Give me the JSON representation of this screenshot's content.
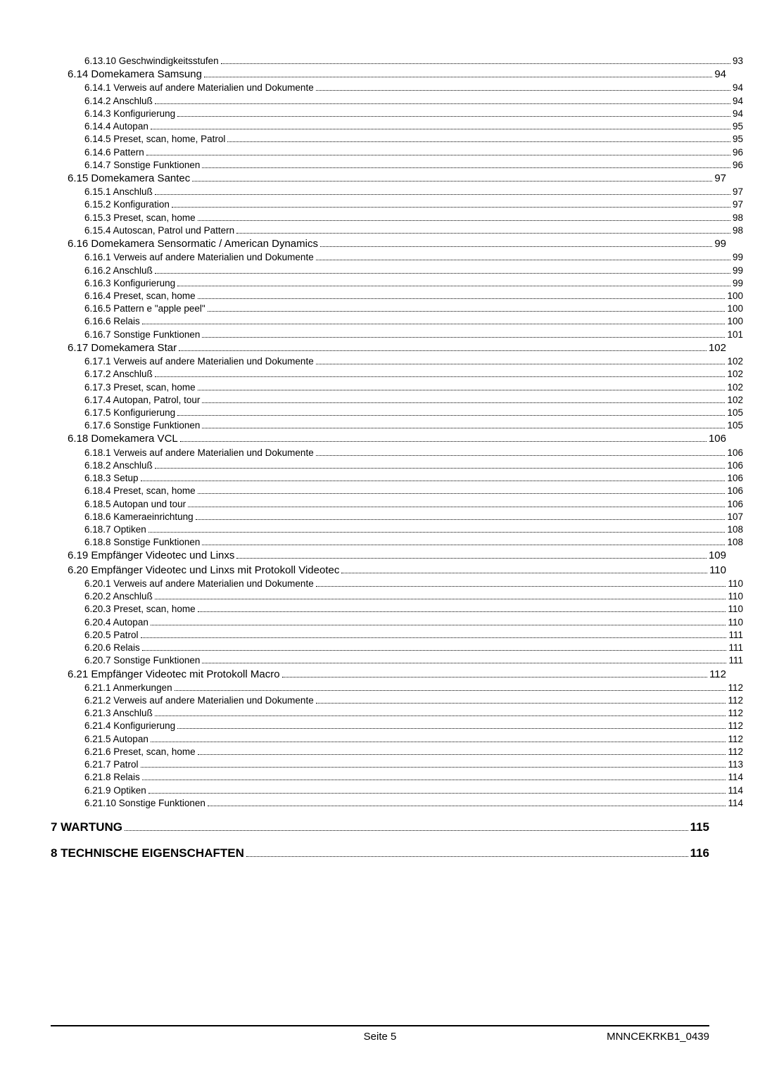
{
  "toc": [
    {
      "level": 3,
      "label": "6.13.10 Geschwindigkeitsstufen",
      "page": "93"
    },
    {
      "level": 2,
      "label": "6.14 Domekamera Samsung",
      "page": "94"
    },
    {
      "level": 3,
      "label": "6.14.1 Verweis auf andere Materialien und Dokumente",
      "page": "94"
    },
    {
      "level": 3,
      "label": "6.14.2 Anschluß",
      "page": "94"
    },
    {
      "level": 3,
      "label": "6.14.3 Konfigurierung",
      "page": "94"
    },
    {
      "level": 3,
      "label": "6.14.4 Autopan",
      "page": "95"
    },
    {
      "level": 3,
      "label": "6.14.5 Preset, scan, home, Patrol",
      "page": "95"
    },
    {
      "level": 3,
      "label": "6.14.6 Pattern",
      "page": "96"
    },
    {
      "level": 3,
      "label": "6.14.7 Sonstige Funktionen",
      "page": "96"
    },
    {
      "level": 2,
      "label": "6.15 Domekamera Santec",
      "page": "97"
    },
    {
      "level": 3,
      "label": "6.15.1 Anschluß",
      "page": "97"
    },
    {
      "level": 3,
      "label": "6.15.2 Konfiguration",
      "page": "97"
    },
    {
      "level": 3,
      "label": "6.15.3 Preset, scan, home",
      "page": "98"
    },
    {
      "level": 3,
      "label": "6.15.4 Autoscan, Patrol und Pattern",
      "page": "98"
    },
    {
      "level": 2,
      "label": "6.16 Domekamera Sensormatic / American Dynamics",
      "page": "99"
    },
    {
      "level": 3,
      "label": "6.16.1 Verweis auf andere Materialien und Dokumente",
      "page": "99"
    },
    {
      "level": 3,
      "label": "6.16.2 Anschluß",
      "page": "99"
    },
    {
      "level": 3,
      "label": "6.16.3 Konfigurierung",
      "page": "99"
    },
    {
      "level": 3,
      "label": "6.16.4 Preset, scan, home",
      "page": "100"
    },
    {
      "level": 3,
      "label": "6.16.5 Pattern e \"apple peel\"",
      "page": "100"
    },
    {
      "level": 3,
      "label": "6.16.6 Relais",
      "page": "100"
    },
    {
      "level": 3,
      "label": "6.16.7 Sonstige Funktionen",
      "page": "101"
    },
    {
      "level": 2,
      "label": "6.17 Domekamera Star",
      "page": "102"
    },
    {
      "level": 3,
      "label": "6.17.1 Verweis auf andere Materialien und Dokumente",
      "page": "102"
    },
    {
      "level": 3,
      "label": "6.17.2 Anschluß",
      "page": "102"
    },
    {
      "level": 3,
      "label": "6.17.3 Preset, scan, home",
      "page": "102"
    },
    {
      "level": 3,
      "label": "6.17.4 Autopan, Patrol, tour",
      "page": "102"
    },
    {
      "level": 3,
      "label": "6.17.5 Konfigurierung",
      "page": "105"
    },
    {
      "level": 3,
      "label": "6.17.6 Sonstige Funktionen",
      "page": "105"
    },
    {
      "level": 2,
      "label": "6.18 Domekamera VCL",
      "page": "106"
    },
    {
      "level": 3,
      "label": "6.18.1 Verweis auf andere Materialien und Dokumente",
      "page": "106"
    },
    {
      "level": 3,
      "label": "6.18.2 Anschluß",
      "page": "106"
    },
    {
      "level": 3,
      "label": "6.18.3 Setup",
      "page": "106"
    },
    {
      "level": 3,
      "label": "6.18.4 Preset, scan, home",
      "page": "106"
    },
    {
      "level": 3,
      "label": "6.18.5 Autopan und tour",
      "page": "106"
    },
    {
      "level": 3,
      "label": "6.18.6 Kameraeinrichtung",
      "page": "107"
    },
    {
      "level": 3,
      "label": "6.18.7 Optiken",
      "page": "108"
    },
    {
      "level": 3,
      "label": "6.18.8 Sonstige Funktionen",
      "page": "108"
    },
    {
      "level": 2,
      "label": "6.19 Empfänger Videotec und Linxs",
      "page": "109"
    },
    {
      "level": 2,
      "label": "6.20 Empfänger Videotec und Linxs mit Protokoll Videotec",
      "page": "110"
    },
    {
      "level": 3,
      "label": "6.20.1 Verweis auf andere Materialien und Dokumente",
      "page": "110"
    },
    {
      "level": 3,
      "label": "6.20.2 Anschluß",
      "page": "110"
    },
    {
      "level": 3,
      "label": "6.20.3 Preset, scan, home",
      "page": "110"
    },
    {
      "level": 3,
      "label": "6.20.4 Autopan",
      "page": "110"
    },
    {
      "level": 3,
      "label": "6.20.5 Patrol",
      "page": "111"
    },
    {
      "level": 3,
      "label": "6.20.6 Relais",
      "page": "111"
    },
    {
      "level": 3,
      "label": "6.20.7 Sonstige Funktionen",
      "page": "111"
    },
    {
      "level": 2,
      "label": "6.21 Empfänger Videotec mit Protokoll Macro",
      "page": "112"
    },
    {
      "level": 3,
      "label": "6.21.1 Anmerkungen",
      "page": "112"
    },
    {
      "level": 3,
      "label": "6.21.2 Verweis auf andere Materialien und Dokumente",
      "page": "112"
    },
    {
      "level": 3,
      "label": "6.21.3 Anschluß",
      "page": "112"
    },
    {
      "level": 3,
      "label": "6.21.4 Konfigurierung",
      "page": "112"
    },
    {
      "level": 3,
      "label": "6.21.5 Autopan",
      "page": "112"
    },
    {
      "level": 3,
      "label": "6.21.6 Preset, scan, home",
      "page": "112"
    },
    {
      "level": 3,
      "label": "6.21.7 Patrol",
      "page": "113"
    },
    {
      "level": 3,
      "label": "6.21.8 Relais",
      "page": "114"
    },
    {
      "level": 3,
      "label": "6.21.9 Optiken",
      "page": "114"
    },
    {
      "level": 3,
      "label": "6.21.10 Sonstige Funktionen",
      "page": "114"
    },
    {
      "level": "gap"
    },
    {
      "level": 1,
      "label": "7 WARTUNG",
      "page": "115"
    },
    {
      "level": "gap"
    },
    {
      "level": 1,
      "label": "8 TECHNISCHE EIGENSCHAFTEN",
      "page": "116"
    }
  ],
  "footer": {
    "center": "Seite 5",
    "right": "MNNCEKRKB1_0439"
  }
}
